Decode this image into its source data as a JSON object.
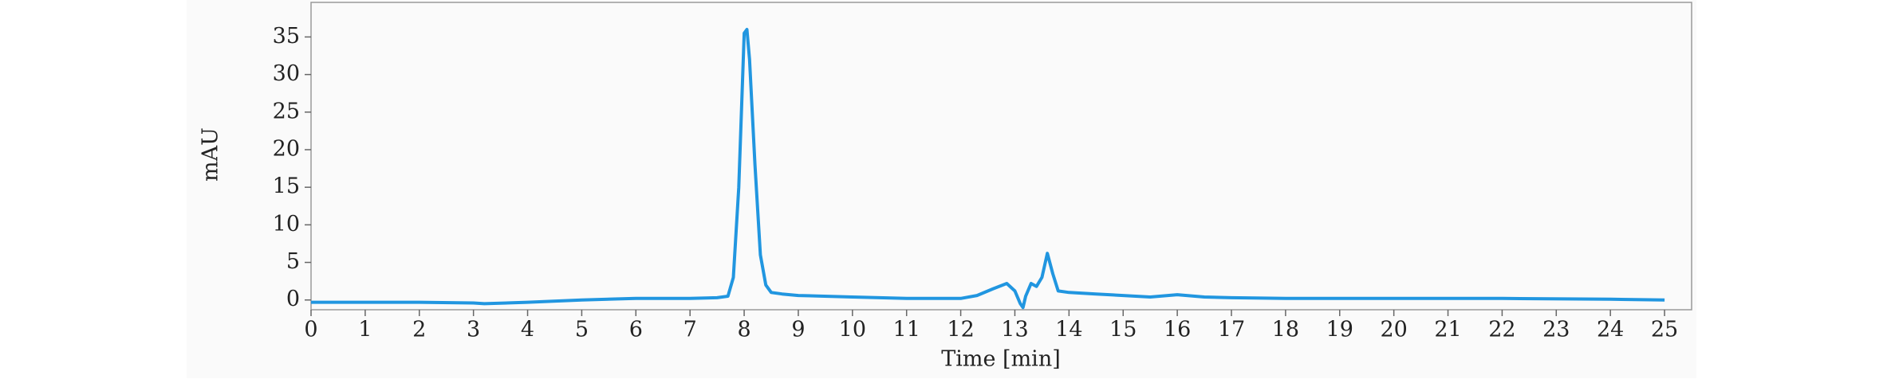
{
  "chart_data": {
    "type": "line",
    "xlabel": "Time [min]",
    "ylabel": "mAU",
    "x": [
      0,
      1,
      2,
      3,
      3.2,
      4,
      5,
      6,
      7,
      7.5,
      7.7,
      7.8,
      7.9,
      8.0,
      8.05,
      8.1,
      8.2,
      8.3,
      8.4,
      8.5,
      8.7,
      9,
      10,
      11,
      12,
      12.3,
      12.6,
      12.85,
      13.0,
      13.1,
      13.15,
      13.2,
      13.3,
      13.4,
      13.5,
      13.6,
      13.7,
      13.8,
      14,
      14.5,
      15,
      15.5,
      16,
      16.5,
      17,
      18,
      20,
      22,
      24,
      25
    ],
    "series": [
      {
        "name": "mAU",
        "color": "#2196e0",
        "values": [
          -0.3,
          -0.3,
          -0.3,
          -0.4,
          -0.5,
          -0.3,
          0,
          0.2,
          0.2,
          0.3,
          0.5,
          3,
          15,
          35.5,
          36,
          32,
          18,
          6,
          2,
          1,
          0.8,
          0.6,
          0.4,
          0.2,
          0.2,
          0.6,
          1.5,
          2.2,
          1.2,
          -0.5,
          -1,
          0.5,
          2.2,
          1.8,
          3,
          6.2,
          3.5,
          1.2,
          1,
          0.8,
          0.6,
          0.4,
          0.7,
          0.4,
          0.3,
          0.2,
          0.2,
          0.2,
          0.1,
          0
        ]
      }
    ],
    "xlim": [
      0,
      25.5
    ],
    "ylim": [
      -1.3,
      39.6
    ],
    "xticks": [
      0,
      1,
      2,
      3,
      4,
      5,
      6,
      7,
      8,
      9,
      10,
      11,
      12,
      13,
      14,
      15,
      16,
      17,
      18,
      19,
      20,
      21,
      22,
      23,
      24,
      25
    ],
    "yticks": [
      0,
      5,
      10,
      15,
      20,
      25,
      30,
      35
    ],
    "grid": false
  }
}
